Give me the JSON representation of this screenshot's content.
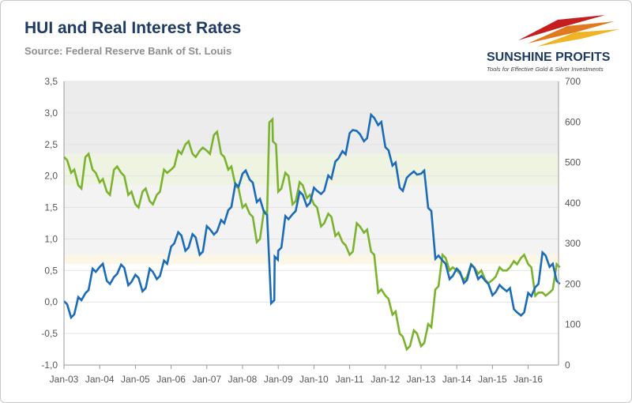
{
  "header": {
    "title": "HUI and Real Interest Rates",
    "subtitle": "Source: Federal Reserve Bank of St. Louis"
  },
  "logo": {
    "name": "SUNSHINE PROFITS",
    "tagline": "Tools for Effective Gold & Silver Investments"
  },
  "colors": {
    "rates_line": "#7ab32e",
    "hui_line": "#1a6bb8",
    "title": "#1f3b63"
  },
  "chart_data": {
    "type": "line",
    "title": "HUI and Real Interest Rates",
    "subtitle": "Source: Federal Reserve Bank of St. Louis",
    "x_tick_labels": [
      "Jan-03",
      "Jan-04",
      "Jan-05",
      "Jan-06",
      "Jan-07",
      "Jan-08",
      "Jan-09",
      "Jan-10",
      "Jan-11",
      "Jan-12",
      "Jan-13",
      "Jan-14",
      "Jan-15",
      "Jan-16"
    ],
    "x_range": [
      2003.0,
      2016.85
    ],
    "y_left": {
      "label": "",
      "range": [
        -1.0,
        3.5
      ],
      "ticks": [
        "-1,0",
        "-0,5",
        "0,0",
        "0,5",
        "1,0",
        "1,5",
        "2,0",
        "2,5",
        "3,0",
        "3,5"
      ]
    },
    "y_right": {
      "label": "",
      "range": [
        0,
        700
      ],
      "ticks": [
        "0",
        "100",
        "200",
        "300",
        "400",
        "500",
        "600",
        "700"
      ]
    },
    "grid": true,
    "series": [
      {
        "name": "Real Interest Rates",
        "axis": "left",
        "color": "#7ab32e",
        "x": [
          2003.0,
          2003.2,
          2003.4,
          2003.6,
          2003.8,
          2004.0,
          2004.2,
          2004.4,
          2004.6,
          2004.8,
          2005.0,
          2005.2,
          2005.4,
          2005.6,
          2005.8,
          2006.0,
          2006.2,
          2006.4,
          2006.6,
          2006.8,
          2007.0,
          2007.2,
          2007.4,
          2007.6,
          2007.8,
          2008.0,
          2008.2,
          2008.4,
          2008.6,
          2008.75,
          2008.85,
          2009.0,
          2009.2,
          2009.4,
          2009.6,
          2009.8,
          2010.0,
          2010.2,
          2010.4,
          2010.6,
          2010.8,
          2011.0,
          2011.2,
          2011.4,
          2011.6,
          2011.8,
          2012.0,
          2012.2,
          2012.4,
          2012.6,
          2012.8,
          2013.0,
          2013.2,
          2013.4,
          2013.6,
          2013.8,
          2014.0,
          2014.2,
          2014.4,
          2014.6,
          2014.8,
          2015.0,
          2015.2,
          2015.4,
          2015.6,
          2015.8,
          2016.0,
          2016.2,
          2016.4,
          2016.6,
          2016.8
        ],
        "values": [
          2.25,
          2.1,
          1.8,
          2.35,
          2.05,
          1.95,
          1.7,
          2.15,
          2.0,
          1.75,
          1.5,
          1.8,
          1.55,
          1.75,
          2.05,
          2.15,
          2.35,
          2.55,
          2.3,
          2.45,
          2.35,
          2.7,
          2.3,
          2.15,
          1.8,
          1.55,
          1.35,
          1.0,
          1.4,
          2.9,
          2.5,
          1.8,
          2.0,
          1.6,
          1.85,
          1.7,
          1.5,
          1.25,
          1.35,
          1.1,
          0.9,
          0.8,
          1.2,
          1.15,
          0.75,
          0.2,
          0.05,
          -0.15,
          -0.55,
          -0.7,
          -0.5,
          -0.65,
          -0.4,
          0.25,
          0.7,
          0.55,
          0.45,
          0.4,
          0.55,
          0.5,
          0.3,
          0.4,
          0.5,
          0.55,
          0.6,
          0.75,
          0.55,
          0.15,
          0.1,
          0.2,
          0.55
        ]
      },
      {
        "name": "HUI",
        "axis": "right",
        "color": "#1a6bb8",
        "x": [
          2003.0,
          2003.2,
          2003.4,
          2003.6,
          2003.8,
          2004.0,
          2004.2,
          2004.4,
          2004.6,
          2004.8,
          2005.0,
          2005.2,
          2005.4,
          2005.6,
          2005.8,
          2006.0,
          2006.2,
          2006.4,
          2006.6,
          2006.8,
          2007.0,
          2007.2,
          2007.4,
          2007.6,
          2007.8,
          2008.0,
          2008.2,
          2008.4,
          2008.6,
          2008.8,
          2008.9,
          2009.0,
          2009.2,
          2009.4,
          2009.6,
          2009.8,
          2010.0,
          2010.2,
          2010.4,
          2010.6,
          2010.8,
          2011.0,
          2011.2,
          2011.4,
          2011.6,
          2011.8,
          2012.0,
          2012.2,
          2012.4,
          2012.6,
          2012.8,
          2013.0,
          2013.2,
          2013.4,
          2013.6,
          2013.8,
          2014.0,
          2014.2,
          2014.4,
          2014.6,
          2014.8,
          2015.0,
          2015.2,
          2015.4,
          2015.6,
          2015.8,
          2016.0,
          2016.2,
          2016.4,
          2016.6,
          2016.8
        ],
        "values": [
          150,
          125,
          160,
          185,
          230,
          250,
          200,
          225,
          240,
          205,
          215,
          190,
          230,
          220,
          250,
          300,
          320,
          290,
          315,
          280,
          335,
          330,
          350,
          390,
          440,
          480,
          450,
          410,
          370,
          160,
          260,
          290,
          360,
          380,
          420,
          400,
          430,
          430,
          460,
          510,
          520,
          580,
          570,
          560,
          610,
          600,
          530,
          500,
          430,
          470,
          470,
          480,
          380,
          270,
          250,
          220,
          230,
          210,
          240,
          220,
          200,
          180,
          190,
          190,
          130,
          130,
          170,
          200,
          270,
          250,
          200
        ]
      }
    ]
  }
}
